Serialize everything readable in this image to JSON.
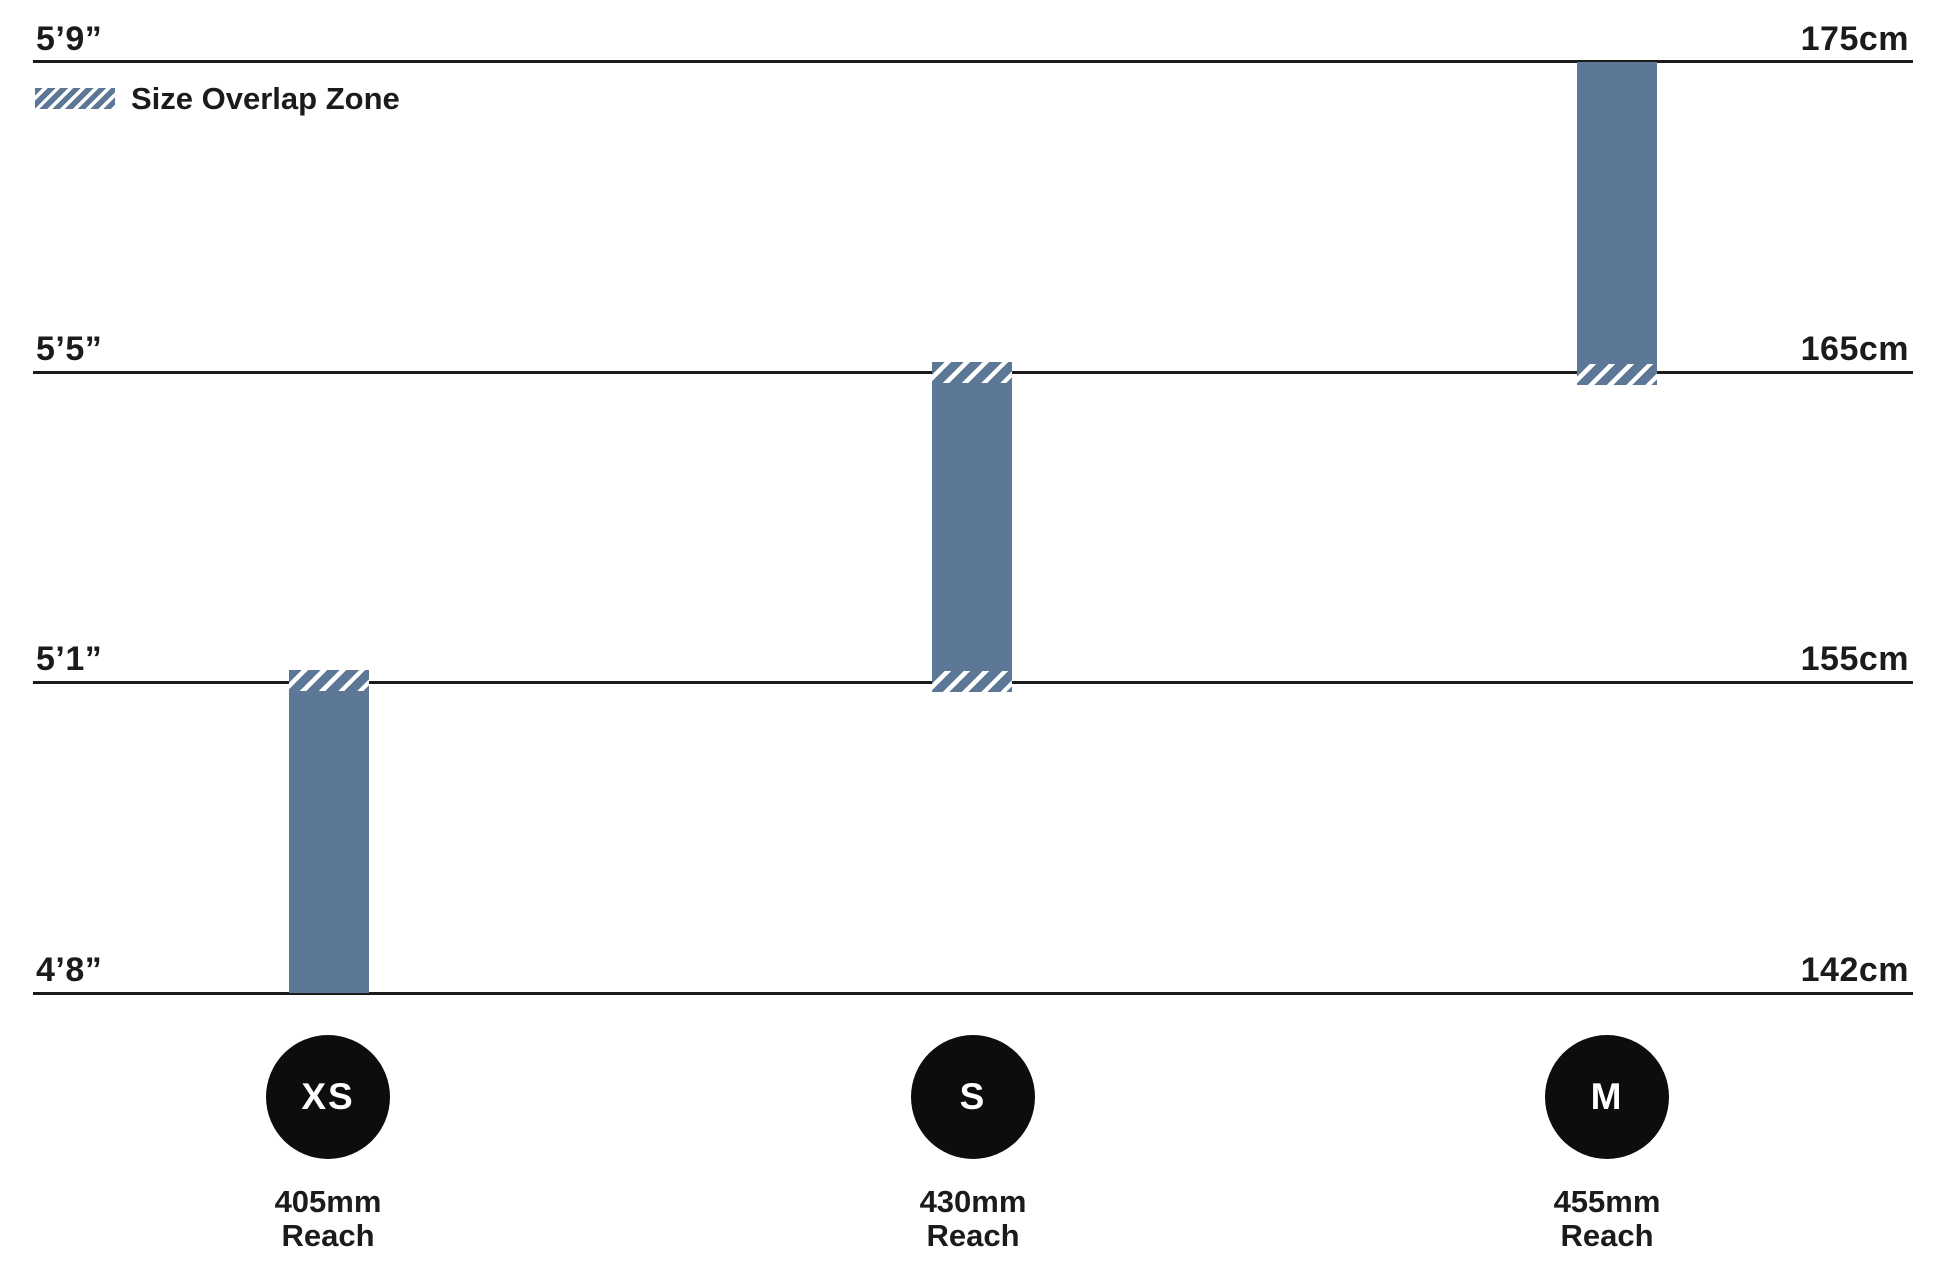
{
  "legend": {
    "label": "Size Overlap Zone"
  },
  "axis": {
    "rows": [
      {
        "imperial": "5’9”",
        "metric": "175cm"
      },
      {
        "imperial": "5’5”",
        "metric": "165cm"
      },
      {
        "imperial": "5’1”",
        "metric": "155cm"
      },
      {
        "imperial": "4’8”",
        "metric": "142cm"
      }
    ]
  },
  "sizes": [
    {
      "label": "XS",
      "reach_value": "405mm",
      "reach_word": "Reach"
    },
    {
      "label": "S",
      "reach_value": "430mm",
      "reach_word": "Reach"
    },
    {
      "label": "M",
      "reach_value": "455mm",
      "reach_word": "Reach"
    }
  ],
  "colors": {
    "bar": "#5d7897",
    "line": "#1b1b1b",
    "text": "#1b1b1b",
    "circle": "#0d0d0d",
    "circle_text": "#ffffff"
  },
  "chart_data": {
    "type": "bar",
    "subtype": "vertical-range",
    "title": "",
    "categories": [
      "XS",
      "S",
      "M"
    ],
    "series": [
      {
        "name": "XS",
        "reach_mm": 405,
        "height_min_cm": 142,
        "height_max_cm": 155,
        "height_min_imperial": "4’8”",
        "height_max_imperial": "5’1”",
        "overlap_zones": [
          "top"
        ]
      },
      {
        "name": "S",
        "reach_mm": 430,
        "height_min_cm": 155,
        "height_max_cm": 165,
        "height_min_imperial": "5’1”",
        "height_max_imperial": "5’5”",
        "overlap_zones": [
          "top",
          "bottom"
        ]
      },
      {
        "name": "M",
        "reach_mm": 455,
        "height_min_cm": 165,
        "height_max_cm": 175,
        "height_min_imperial": "5’5”",
        "height_max_imperial": "5’9”",
        "overlap_zones": [
          "bottom"
        ]
      }
    ],
    "y_axis_left_ticks": [
      "5’9”",
      "5’5”",
      "5’1”",
      "4’8”"
    ],
    "y_axis_right_ticks": [
      "175cm",
      "165cm",
      "155cm",
      "142cm"
    ],
    "y_axis_range_cm": [
      142,
      175
    ],
    "legend": [
      "Size Overlap Zone"
    ],
    "grid": "horizontal-lines",
    "legend_position": "top-left",
    "bar_color": "#5d7897"
  }
}
